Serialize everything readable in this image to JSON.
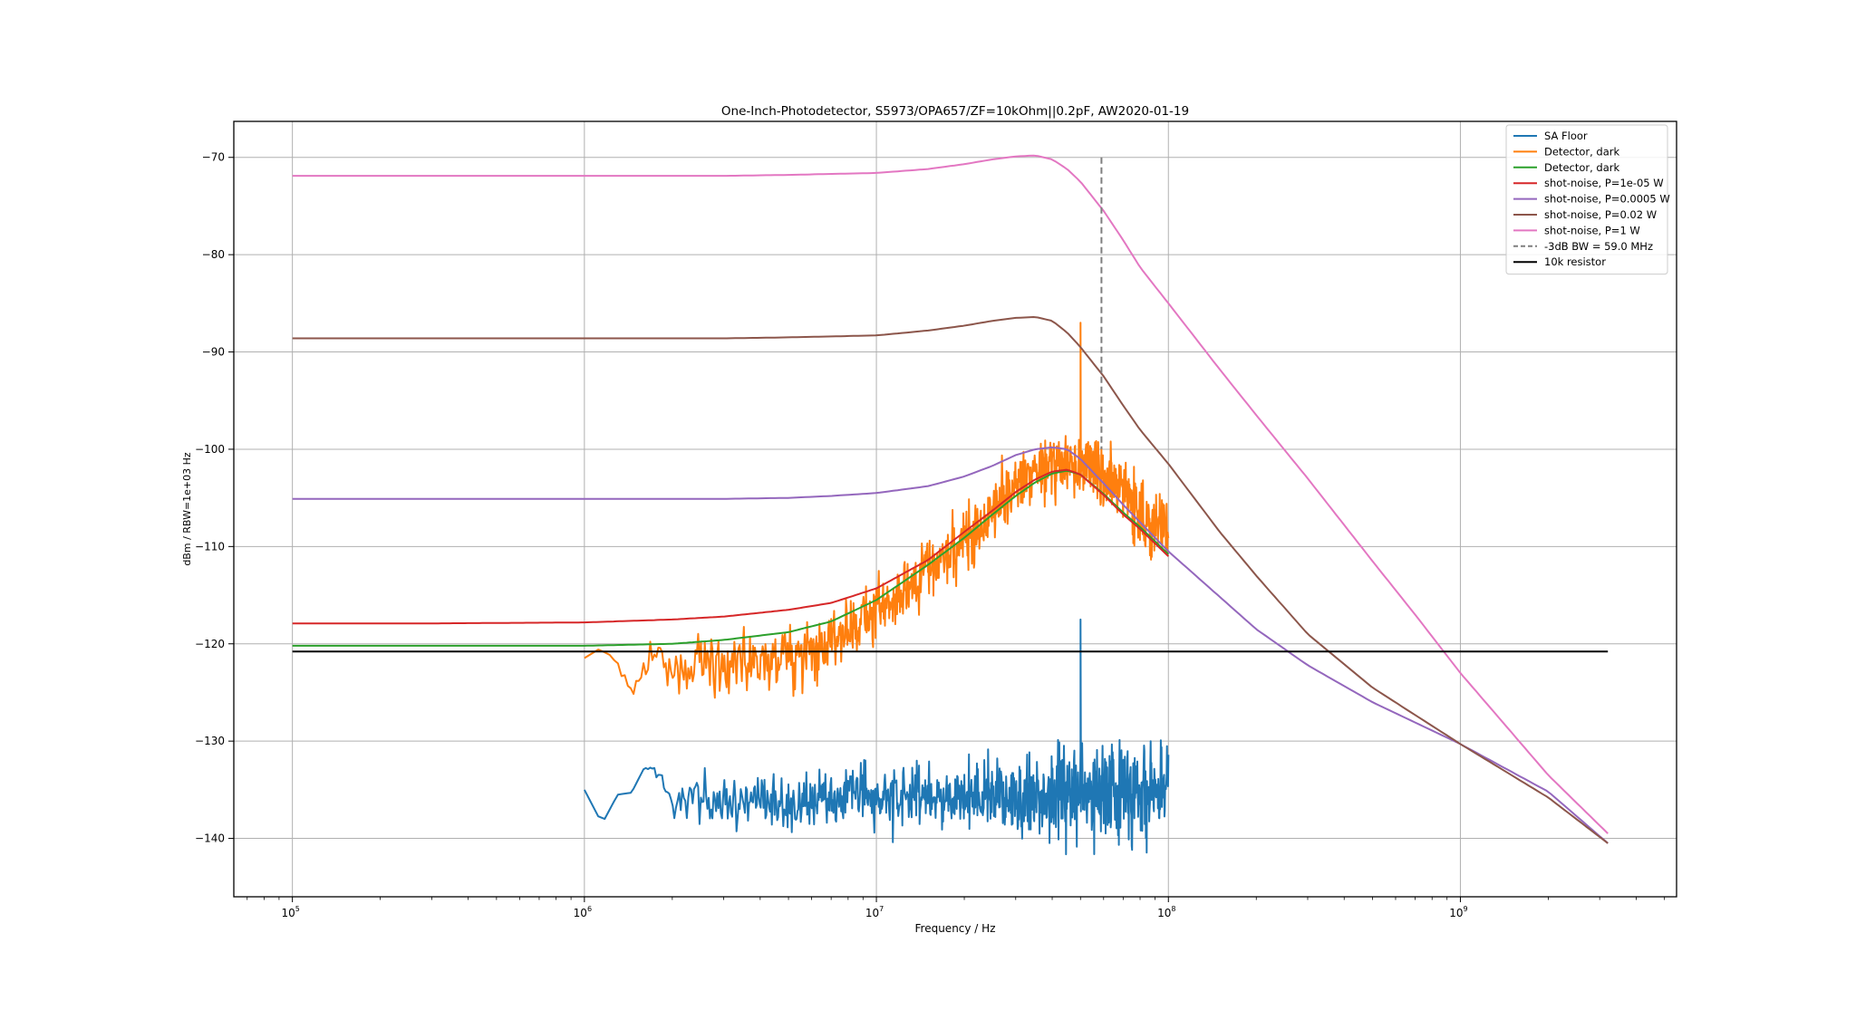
{
  "chart_data": {
    "type": "line",
    "title": "One-Inch-Photodetector, S5973/OPA657/ZF=10kOhm||0.2pF, AW2020-01-19",
    "xlabel": "Frequency / Hz",
    "ylabel": "dBm / RBW=1e+03 Hz",
    "xscale": "log",
    "xlim": [
      63000,
      5500000000
    ],
    "ylim": [
      -146,
      -66.3
    ],
    "grid": true,
    "legend_position": "top-right",
    "x_ticks": [
      {
        "value": 100000,
        "label_base": "10",
        "label_exp": "5"
      },
      {
        "value": 1000000,
        "label_base": "10",
        "label_exp": "6"
      },
      {
        "value": 10000000,
        "label_base": "10",
        "label_exp": "7"
      },
      {
        "value": 100000000,
        "label_base": "10",
        "label_exp": "8"
      },
      {
        "value": 1000000000,
        "label_base": "10",
        "label_exp": "9"
      }
    ],
    "y_ticks": [
      {
        "value": -70,
        "label": "−70"
      },
      {
        "value": -80,
        "label": "−80"
      },
      {
        "value": -90,
        "label": "−90"
      },
      {
        "value": -100,
        "label": "−100"
      },
      {
        "value": -110,
        "label": "−110"
      },
      {
        "value": -120,
        "label": "−120"
      },
      {
        "value": -130,
        "label": "−130"
      },
      {
        "value": -140,
        "label": "−140"
      }
    ],
    "series": [
      {
        "name": "SA Floor",
        "color": "#1f77b4",
        "kind": "noisy",
        "width": 2,
        "x": [
          1000000,
          1150000,
          1300000,
          1450000,
          1600000,
          1800000,
          2000000,
          2300000,
          2600000,
          3000000,
          3500000,
          4000000,
          5000000,
          6000000,
          7000000,
          8000000,
          10000000,
          13000000,
          16000000,
          20000000,
          25000000,
          30000000,
          35000000,
          40000000,
          45000000,
          48000000,
          50000000,
          55000000,
          60000000,
          70000000,
          80000000,
          90000000,
          100000000
        ],
        "y": [
          -135,
          -138.5,
          -135.5,
          -135.3,
          -132.8,
          -133,
          -136.5,
          -135.3,
          -136.5,
          -135.7,
          -136.2,
          -135.3,
          -136.5,
          -136.2,
          -136,
          -135.5,
          -136,
          -135.7,
          -136,
          -135.7,
          -135.3,
          -135.5,
          -135.5,
          -135.8,
          -135.5,
          -135,
          -117.5,
          -135.3,
          -135.3,
          -135.3,
          -135.3,
          -135.3,
          -135.3
        ],
        "amp": [
          0,
          0,
          0,
          0,
          0,
          0.5,
          1,
          1.5,
          1.5,
          1.5,
          1.5,
          1.8,
          1.8,
          2,
          2,
          2,
          2,
          2,
          2,
          2.3,
          2.5,
          2.5,
          2.8,
          3,
          3,
          3,
          0,
          3,
          3,
          3,
          3,
          3,
          3
        ]
      },
      {
        "name": "Detector, dark",
        "color": "#ff7f0e",
        "kind": "noisy",
        "width": 2,
        "x": [
          1000000,
          1150000,
          1300000,
          1450000,
          1600000,
          1800000,
          2000000,
          2300000,
          2600000,
          3000000,
          3500000,
          4000000,
          5000000,
          6000000,
          7000000,
          8000000,
          10000000,
          13000000,
          16000000,
          20000000,
          25000000,
          30000000,
          35000000,
          40000000,
          45000000,
          48000000,
          50000000,
          55000000,
          60000000,
          70000000,
          80000000,
          90000000,
          100000000
        ],
        "y": [
          -121.5,
          -120.5,
          -122,
          -124.3,
          -122.5,
          -121,
          -122.5,
          -122.5,
          -122,
          -122.5,
          -121.5,
          -122,
          -121,
          -121,
          -119.5,
          -118.5,
          -116.5,
          -114.5,
          -112,
          -109.5,
          -106.5,
          -104,
          -102.5,
          -101.5,
          -101.5,
          -101.5,
          -87,
          -102,
          -103,
          -104.5,
          -106.5,
          -108,
          -108.5
        ],
        "amp": [
          0.4,
          0.6,
          0.8,
          1,
          1.2,
          1.4,
          1.6,
          1.8,
          2,
          2,
          2,
          2,
          2,
          2,
          2,
          2,
          2,
          2,
          2,
          2,
          2,
          2,
          2,
          2,
          2,
          2,
          0,
          2.2,
          2.2,
          2.2,
          2.2,
          2.2,
          2.2
        ]
      },
      {
        "name": "Detector, dark",
        "color": "#2ca02c",
        "kind": "line",
        "width": 2,
        "x": [
          100000,
          300000,
          1000000,
          2000000,
          3000000,
          5000000,
          7000000,
          10000000,
          15000000,
          20000000,
          25000000,
          30000000,
          35000000,
          40000000,
          45000000,
          50000000,
          60000000,
          70000000,
          80000000,
          100000000
        ],
        "y": [
          -120.2,
          -120.2,
          -120.2,
          -120,
          -119.6,
          -118.8,
          -117.7,
          -115.5,
          -111.9,
          -109.1,
          -106.7,
          -104.8,
          -103.4,
          -102.5,
          -102.2,
          -102.6,
          -104.6,
          -106.5,
          -108,
          -110.8
        ]
      },
      {
        "name": "shot-noise, P=1e-05 W",
        "color": "#d62728",
        "kind": "line",
        "width": 2,
        "x": [
          100000,
          300000,
          1000000,
          2000000,
          3000000,
          5000000,
          7000000,
          10000000,
          15000000,
          20000000,
          25000000,
          30000000,
          35000000,
          40000000,
          45000000,
          50000000,
          60000000,
          70000000,
          80000000,
          100000000
        ],
        "y": [
          -117.9,
          -117.9,
          -117.8,
          -117.5,
          -117.2,
          -116.5,
          -115.8,
          -114.3,
          -111.4,
          -108.5,
          -106.3,
          -104.4,
          -103.1,
          -102.3,
          -102.1,
          -102.6,
          -104.7,
          -106.7,
          -108.2,
          -111
        ]
      },
      {
        "name": "shot-noise, P=0.0005 W",
        "color": "#9467bd",
        "kind": "line",
        "width": 2,
        "x": [
          100000,
          1000000,
          3000000,
          5000000,
          7000000,
          10000000,
          15000000,
          20000000,
          25000000,
          30000000,
          35000000,
          40000000,
          45000000,
          50000000,
          60000000,
          70000000,
          80000000,
          100000000,
          200000000,
          300000000,
          500000000,
          1000000000,
          2000000000,
          3200000000
        ],
        "y": [
          -105.1,
          -105.1,
          -105.1,
          -105,
          -104.8,
          -104.5,
          -103.8,
          -102.8,
          -101.7,
          -100.6,
          -100,
          -99.8,
          -100,
          -101,
          -103.5,
          -105.7,
          -107.5,
          -110.5,
          -118.5,
          -122.2,
          -126,
          -130.3,
          -135.2,
          -140.5
        ]
      },
      {
        "name": "shot-noise, P=0.02 W",
        "color": "#8c564b",
        "kind": "line",
        "width": 2,
        "x": [
          100000,
          1000000,
          3000000,
          5000000,
          10000000,
          15000000,
          20000000,
          25000000,
          30000000,
          35000000,
          40000000,
          45000000,
          50000000,
          60000000,
          70000000,
          80000000,
          100000000,
          150000000,
          200000000,
          300000000,
          500000000,
          1000000000,
          2000000000,
          3200000000
        ],
        "y": [
          -88.6,
          -88.6,
          -88.6,
          -88.5,
          -88.3,
          -87.8,
          -87.3,
          -86.8,
          -86.5,
          -86.4,
          -86.8,
          -88,
          -89.5,
          -92.5,
          -95.5,
          -98,
          -101.5,
          -108.5,
          -113,
          -119,
          -124.5,
          -130.3,
          -135.8,
          -140.5
        ]
      },
      {
        "name": "shot-noise, P=1 W",
        "color": "#e377c2",
        "kind": "line",
        "width": 2,
        "x": [
          100000,
          1000000,
          3000000,
          5000000,
          10000000,
          15000000,
          20000000,
          25000000,
          30000000,
          35000000,
          40000000,
          45000000,
          50000000,
          60000000,
          70000000,
          80000000,
          100000000,
          150000000,
          200000000,
          300000000,
          500000000,
          700000000,
          1000000000,
          2000000000,
          3200000000
        ],
        "y": [
          -71.9,
          -71.9,
          -71.9,
          -71.8,
          -71.6,
          -71.2,
          -70.7,
          -70.2,
          -69.9,
          -69.8,
          -70.2,
          -71.2,
          -72.5,
          -75.5,
          -78.5,
          -81.3,
          -85,
          -91.8,
          -96.5,
          -103,
          -111.5,
          -117,
          -123,
          -133.5,
          -139.5
        ]
      },
      {
        "name": "-3dB BW = 59.0 MHz",
        "color": "#7f7f7f",
        "kind": "vline",
        "width": 2,
        "x": [
          59000000,
          59000000
        ],
        "y": [
          -70,
          -100
        ]
      },
      {
        "name": "10k resistor",
        "color": "#000000",
        "kind": "line",
        "width": 2,
        "x": [
          100000,
          3200000000
        ],
        "y": [
          -120.8,
          -120.8
        ]
      }
    ]
  }
}
